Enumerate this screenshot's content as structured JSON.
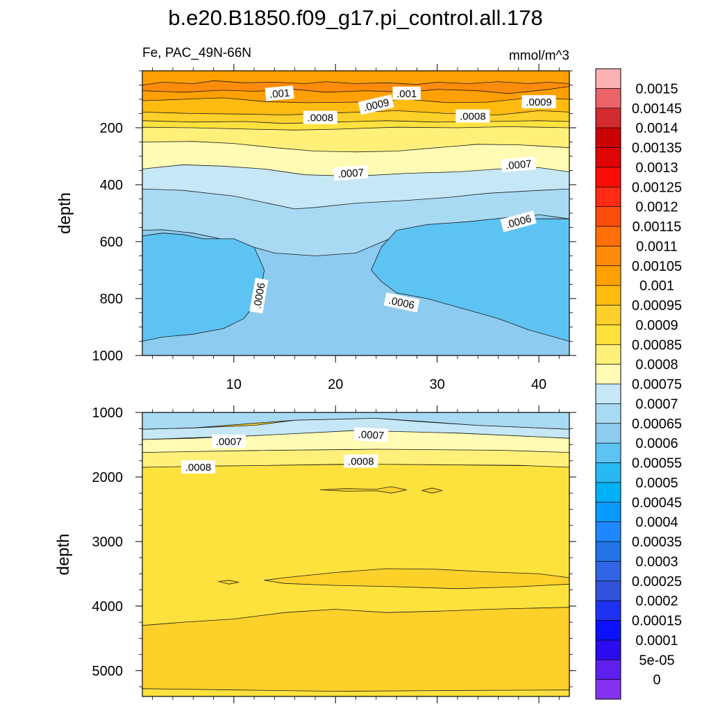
{
  "chart_data": {
    "type": "heatmap",
    "title": "b.e20.B1850.f09_g17.pi_control.all.178",
    "left_subtitle": "Fe, PAC_49N-66N",
    "right_subtitle": "mmol/m^3",
    "xlim": [
      1,
      43
    ],
    "x_ticks": [
      10,
      20,
      30,
      40
    ],
    "panels": [
      {
        "name": "upper",
        "ylabel": "depth",
        "ylim": [
          0,
          1000
        ],
        "y_ticks": [
          200,
          400,
          600,
          800,
          1000
        ],
        "x_tick_labels_shown": true,
        "contour_labels": [
          {
            "text": ".001",
            "x": 14.5,
            "y": 80,
            "rotate": -5
          },
          {
            "text": ".001",
            "x": 27.0,
            "y": 80,
            "rotate": 0
          },
          {
            "text": ".0009",
            "x": 24.0,
            "y": 120,
            "rotate": -13
          },
          {
            "text": ".0009",
            "x": 40.0,
            "y": 110,
            "rotate": 0
          },
          {
            "text": ".0008",
            "x": 18.5,
            "y": 165,
            "rotate": 0
          },
          {
            "text": ".0008",
            "x": 33.5,
            "y": 160,
            "rotate": 0
          },
          {
            "text": ".0007",
            "x": 21.5,
            "y": 360,
            "rotate": -4
          },
          {
            "text": ".0007",
            "x": 38.0,
            "y": 330,
            "rotate": -5
          },
          {
            "text": ".0006",
            "x": 38.0,
            "y": 530,
            "rotate": -15
          },
          {
            "text": ".0006",
            "x": 12.5,
            "y": 790,
            "rotate": -80
          },
          {
            "text": ".0006",
            "x": 26.5,
            "y": 815,
            "rotate": 12
          }
        ]
      },
      {
        "name": "lower",
        "ylabel": "depth",
        "ylim": [
          1000,
          5400
        ],
        "y_ticks": [
          1000,
          2000,
          3000,
          4000,
          5000
        ],
        "x_tick_labels_shown": false,
        "contour_labels": [
          {
            "text": ".0007",
            "x": 9.5,
            "y": 1450,
            "rotate": 0
          },
          {
            "text": ".0007",
            "x": 23.5,
            "y": 1350,
            "rotate": 3
          },
          {
            "text": ".0008",
            "x": 6.5,
            "y": 1850,
            "rotate": 0
          },
          {
            "text": ".0008",
            "x": 22.5,
            "y": 1760,
            "rotate": 0
          }
        ]
      }
    ],
    "colorbar": {
      "levels": [
        "0.0015",
        "0.00145",
        "0.0014",
        "0.00135",
        "0.0013",
        "0.00125",
        "0.0012",
        "0.00115",
        "0.0011",
        "0.00105",
        "0.001",
        "0.00095",
        "0.0009",
        "0.00085",
        "0.0008",
        "0.00075",
        "0.0007",
        "0.00065",
        "0.0006",
        "0.00055",
        "0.0005",
        "0.00045",
        "0.0004",
        "0.00035",
        "0.0003",
        "0.00025",
        "0.0002",
        "0.00015",
        "0.0001",
        "5e-05",
        "0"
      ],
      "colors": [
        "#fbb2b4",
        "#eb6468",
        "#d22a2e",
        "#cb0203",
        "#e10405",
        "#fb0c07",
        "#ff2b13",
        "#fd4d0c",
        "#ff6f05",
        "#fe8a0b",
        "#ffa002",
        "#ffbb0f",
        "#fed02a",
        "#fde23e",
        "#fff07a",
        "#fffbb4",
        "#c5e7f6",
        "#a9daf4",
        "#8ecbf0",
        "#5cc3f3",
        "#28b9f1",
        "#00b1f6",
        "#079afd",
        "#1f87ff",
        "#2173e6",
        "#3066e5",
        "#3153db",
        "#1f32f3",
        "#0c11fd",
        "#2a0cee",
        "#5d20ed",
        "#8333ee"
      ]
    },
    "region_colors": {
      "v00105": "#ff8b0a",
      "v001": "#ffa002",
      "v00095": "#ffbb0f",
      "v0009": "#fed02a",
      "v00085": "#fde23e",
      "v0008": "#fff07a",
      "v00075": "#fffbb4",
      "v0007": "#c5e7f6",
      "v00065": "#a9daf4",
      "v0006": "#8ecbf0",
      "v00055": "#5cc3f3"
    }
  }
}
